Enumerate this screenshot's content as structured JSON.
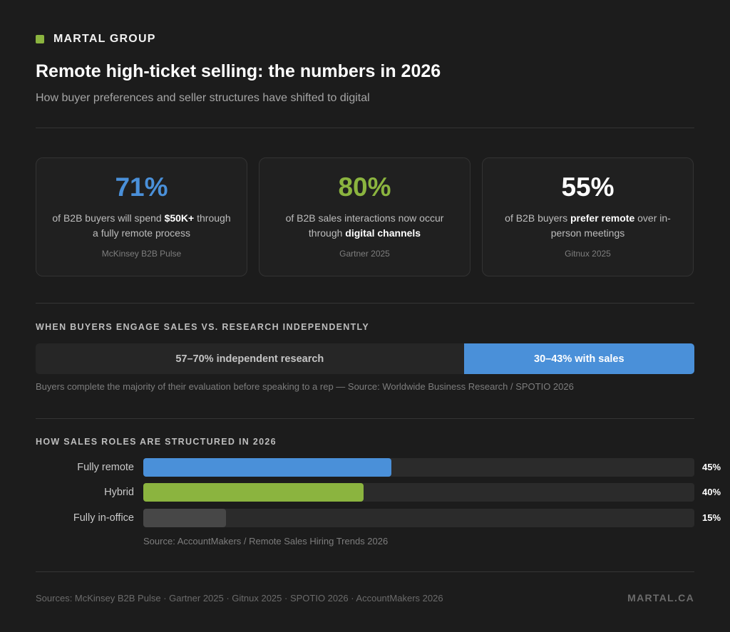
{
  "brand": {
    "name": "MARTAL GROUP",
    "color": "#8bb43f"
  },
  "header": {
    "title": "Remote high-ticket selling: the numbers in 2026",
    "subtitle": "How buyer preferences and seller structures have shifted to digital"
  },
  "stats": [
    {
      "value": "71%",
      "color": "#4a90d9",
      "text_before": "of B2B buyers will spend ",
      "highlight": "$50K+",
      "text_after": " through a fully remote process",
      "source": "McKinsey B2B Pulse"
    },
    {
      "value": "80%",
      "color": "#8bb43f",
      "text_before": "of B2B sales interactions now occur through ",
      "highlight": "digital channels",
      "text_after": "",
      "source": "Gartner 2025"
    },
    {
      "value": "55%",
      "color": "#ffffff",
      "text_before": "of B2B buyers ",
      "highlight": "prefer remote",
      "text_after": " over in-person meetings",
      "source": "Gitnux 2025"
    }
  ],
  "engagement": {
    "heading": "WHEN BUYERS ENGAGE SALES VS. RESEARCH INDEPENDENTLY",
    "research_label": "57–70% independent research",
    "sales_label": "30–43% with sales",
    "research_share": 65,
    "sales_share": 35,
    "sales_color": "#4a90d9",
    "note": "Buyers complete the majority of their evaluation before speaking to a rep — Source: Worldwide Business Research / SPOTIO 2026"
  },
  "roles": {
    "heading": "HOW SALES ROLES ARE STRUCTURED IN 2026"
  },
  "chart_data": {
    "type": "bar",
    "orientation": "horizontal",
    "categories": [
      "Fully remote",
      "Hybrid",
      "Fully in-office"
    ],
    "values": [
      45,
      40,
      15
    ],
    "value_labels": [
      "45%",
      "40%",
      "15%"
    ],
    "colors": [
      "#4a90d9",
      "#8bb43f",
      "#474747"
    ],
    "xlim": [
      0,
      100
    ],
    "source": "Source: AccountMakers / Remote Sales Hiring Trends 2026"
  },
  "footer": {
    "sources": "Sources: McKinsey B2B Pulse · Gartner 2025 · Gitnux 2025 · SPOTIO 2026 · AccountMakers 2026",
    "site": "MARTAL.CA"
  }
}
